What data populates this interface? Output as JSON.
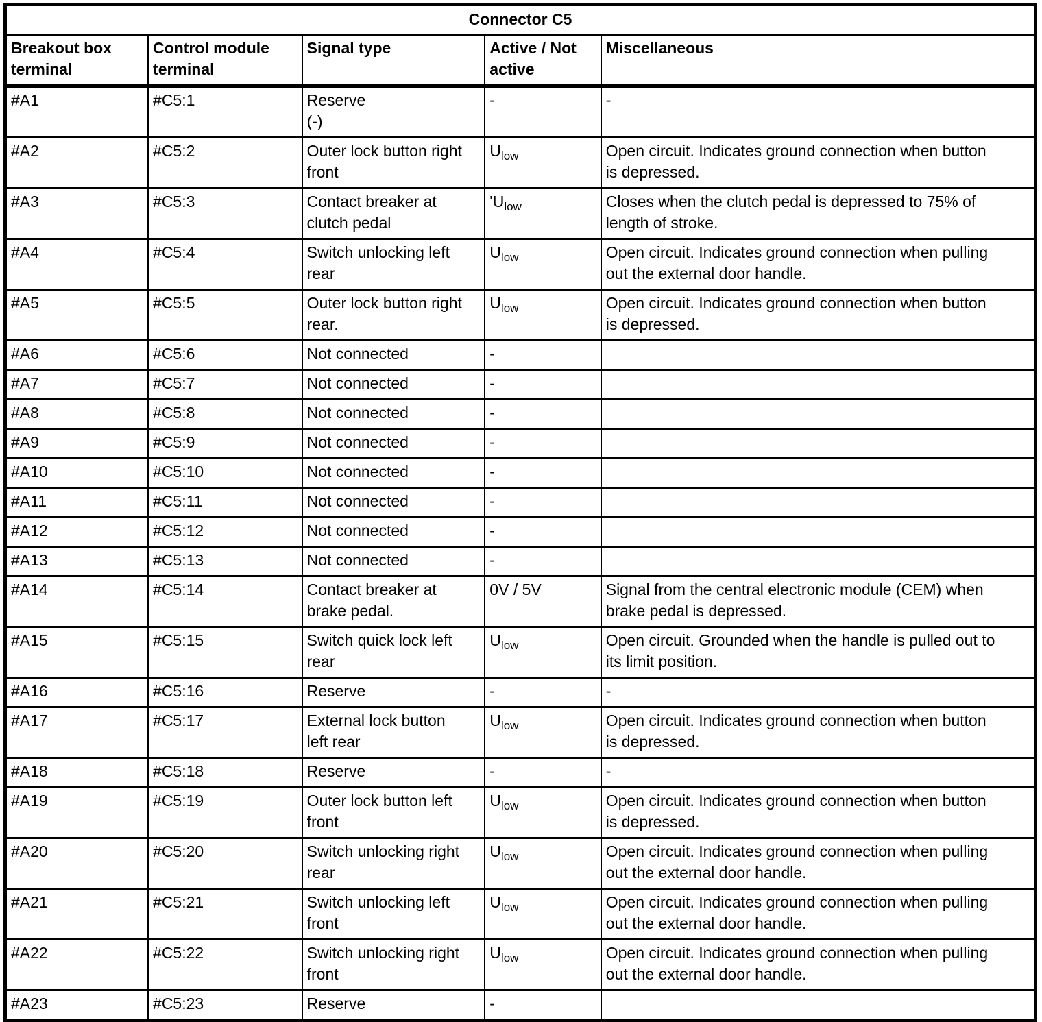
{
  "table": {
    "title": "Connector C5",
    "columns": [
      "Breakout box\nterminal",
      "Control module\nterminal",
      "Signal type",
      "Active / Not\nactive",
      "Miscellaneous"
    ],
    "rows": [
      {
        "breakout": "#A1",
        "module": "#C5:1",
        "signal": "Reserve\n(-)",
        "active": "-",
        "misc": "-"
      },
      {
        "breakout": "#A2",
        "module": "#C5:2",
        "signal": "Outer lock button right\nfront",
        "active": "U_low",
        "misc": "Open circuit. Indicates ground connection when button\nis depressed."
      },
      {
        "breakout": "#A3",
        "module": "#C5:3",
        "signal": "Contact breaker at\nclutch pedal",
        "active": "'U_low",
        "misc": "Closes when the clutch pedal is depressed to 75% of\nlength of stroke."
      },
      {
        "breakout": "#A4",
        "module": "#C5:4",
        "signal": "Switch unlocking left\nrear",
        "active": "U_low",
        "misc": "Open circuit. Indicates ground connection when pulling\nout the external door handle."
      },
      {
        "breakout": "#A5",
        "module": "#C5:5",
        "signal": "Outer lock button right\nrear.",
        "active": "U_low",
        "misc": "Open circuit. Indicates ground connection when button\nis depressed."
      },
      {
        "breakout": "#A6",
        "module": "#C5:6",
        "signal": "Not connected",
        "active": "-",
        "misc": ""
      },
      {
        "breakout": "#A7",
        "module": "#C5:7",
        "signal": "Not connected",
        "active": "-",
        "misc": ""
      },
      {
        "breakout": "#A8",
        "module": "#C5:8",
        "signal": "Not connected",
        "active": "-",
        "misc": ""
      },
      {
        "breakout": "#A9",
        "module": "#C5:9",
        "signal": "Not connected",
        "active": "-",
        "misc": ""
      },
      {
        "breakout": "#A10",
        "module": "#C5:10",
        "signal": "Not connected",
        "active": "-",
        "misc": ""
      },
      {
        "breakout": "#A11",
        "module": "#C5:11",
        "signal": "Not connected",
        "active": "-",
        "misc": ""
      },
      {
        "breakout": "#A12",
        "module": "#C5:12",
        "signal": "Not connected",
        "active": "-",
        "misc": ""
      },
      {
        "breakout": "#A13",
        "module": "#C5:13",
        "signal": "Not connected",
        "active": "-",
        "misc": ""
      },
      {
        "breakout": "#A14",
        "module": "#C5:14",
        "signal": "Contact breaker at\nbrake pedal.",
        "active": "0V / 5V",
        "misc": "Signal from the central electronic module (CEM) when\nbrake pedal is depressed."
      },
      {
        "breakout": "#A15",
        "module": "#C5:15",
        "signal": "Switch quick lock left\nrear",
        "active": "U_low",
        "misc": "Open circuit. Grounded when the handle is pulled out to\nits limit position."
      },
      {
        "breakout": "#A16",
        "module": "#C5:16",
        "signal": "Reserve",
        "active": "-",
        "misc": "-"
      },
      {
        "breakout": "#A17",
        "module": "#C5:17",
        "signal": "External lock button\nleft rear",
        "active": "U_low",
        "misc": "Open circuit. Indicates ground connection when button\nis depressed."
      },
      {
        "breakout": "#A18",
        "module": "#C5:18",
        "signal": "Reserve",
        "active": "-",
        "misc": "-"
      },
      {
        "breakout": "#A19",
        "module": "#C5:19",
        "signal": "Outer lock button left\nfront",
        "active": "U_low",
        "misc": "Open circuit. Indicates ground connection when button\nis depressed."
      },
      {
        "breakout": "#A20",
        "module": "#C5:20",
        "signal": "Switch unlocking right\nrear",
        "active": "U_low",
        "misc": "Open circuit. Indicates ground connection when pulling\nout the external door handle."
      },
      {
        "breakout": "#A21",
        "module": "#C5:21",
        "signal": "Switch unlocking left\nfront",
        "active": "U_low",
        "misc": "Open circuit. Indicates ground connection when pulling\nout the external door handle."
      },
      {
        "breakout": "#A22",
        "module": "#C5:22",
        "signal": "Switch unlocking right\nfront",
        "active": "U_low",
        "misc": "Open circuit. Indicates ground connection when pulling\nout the external door handle."
      },
      {
        "breakout": "#A23",
        "module": "#C5:23",
        "signal": "Reserve",
        "active": "-",
        "misc": ""
      }
    ]
  }
}
